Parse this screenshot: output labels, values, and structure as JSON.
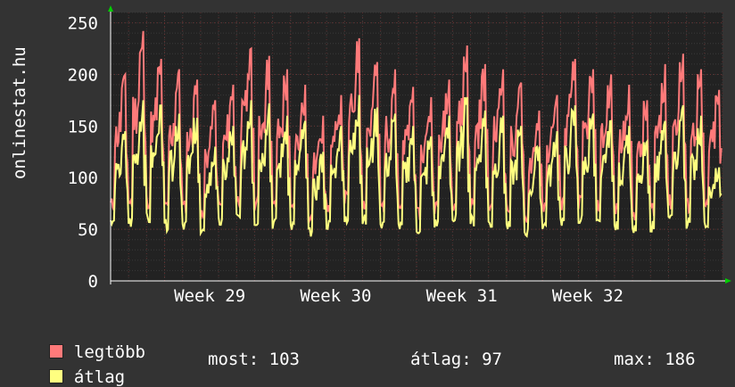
{
  "chart_data": {
    "type": "line",
    "ylabel": "onlinestat.hu",
    "ylim": [
      0,
      260
    ],
    "yticks": [
      0,
      50,
      100,
      150,
      200,
      250
    ],
    "x_labels": [
      "Week 29",
      "Week 30",
      "Week 31",
      "Week 32"
    ],
    "days": 34,
    "grid": true,
    "series": [
      {
        "name": "legtöbb",
        "color": "#ff7a7a",
        "daily_peaks": [
          200,
          242,
          215,
          205,
          195,
          175,
          190,
          225,
          218,
          205,
          190,
          160,
          180,
          235,
          212,
          205,
          188,
          178,
          195,
          228,
          210,
          205,
          192,
          165,
          180,
          215,
          205,
          200,
          190,
          175,
          210,
          220,
          205,
          185
        ],
        "daily_lows": [
          60,
          58,
          62,
          56,
          58,
          50,
          60,
          62,
          60,
          58,
          56,
          48,
          58,
          62,
          60,
          58,
          56,
          52,
          58,
          60,
          60,
          58,
          56,
          50,
          58,
          60,
          62,
          58,
          56,
          52,
          55,
          60,
          58,
          60
        ]
      },
      {
        "name": "átlag",
        "color": "#ffff80",
        "daily_peaks": [
          145,
          175,
          170,
          162,
          158,
          130,
          150,
          175,
          172,
          160,
          155,
          125,
          150,
          180,
          168,
          162,
          150,
          140,
          160,
          178,
          165,
          160,
          150,
          130,
          145,
          170,
          162,
          155,
          150,
          135,
          155,
          170,
          160,
          110
        ],
        "daily_lows": [
          46,
          44,
          48,
          42,
          44,
          36,
          46,
          48,
          46,
          44,
          42,
          38,
          44,
          48,
          46,
          44,
          42,
          40,
          44,
          46,
          46,
          44,
          42,
          38,
          44,
          46,
          48,
          44,
          42,
          40,
          42,
          46,
          44,
          48
        ]
      }
    ]
  },
  "legend": [
    {
      "label": "legtöbb",
      "color": "#ff7a7a"
    },
    {
      "label": "átlag",
      "color": "#ffff80"
    }
  ],
  "stats": {
    "now": "most: 103",
    "avg": "átlag: 97",
    "max": "max: 186"
  }
}
